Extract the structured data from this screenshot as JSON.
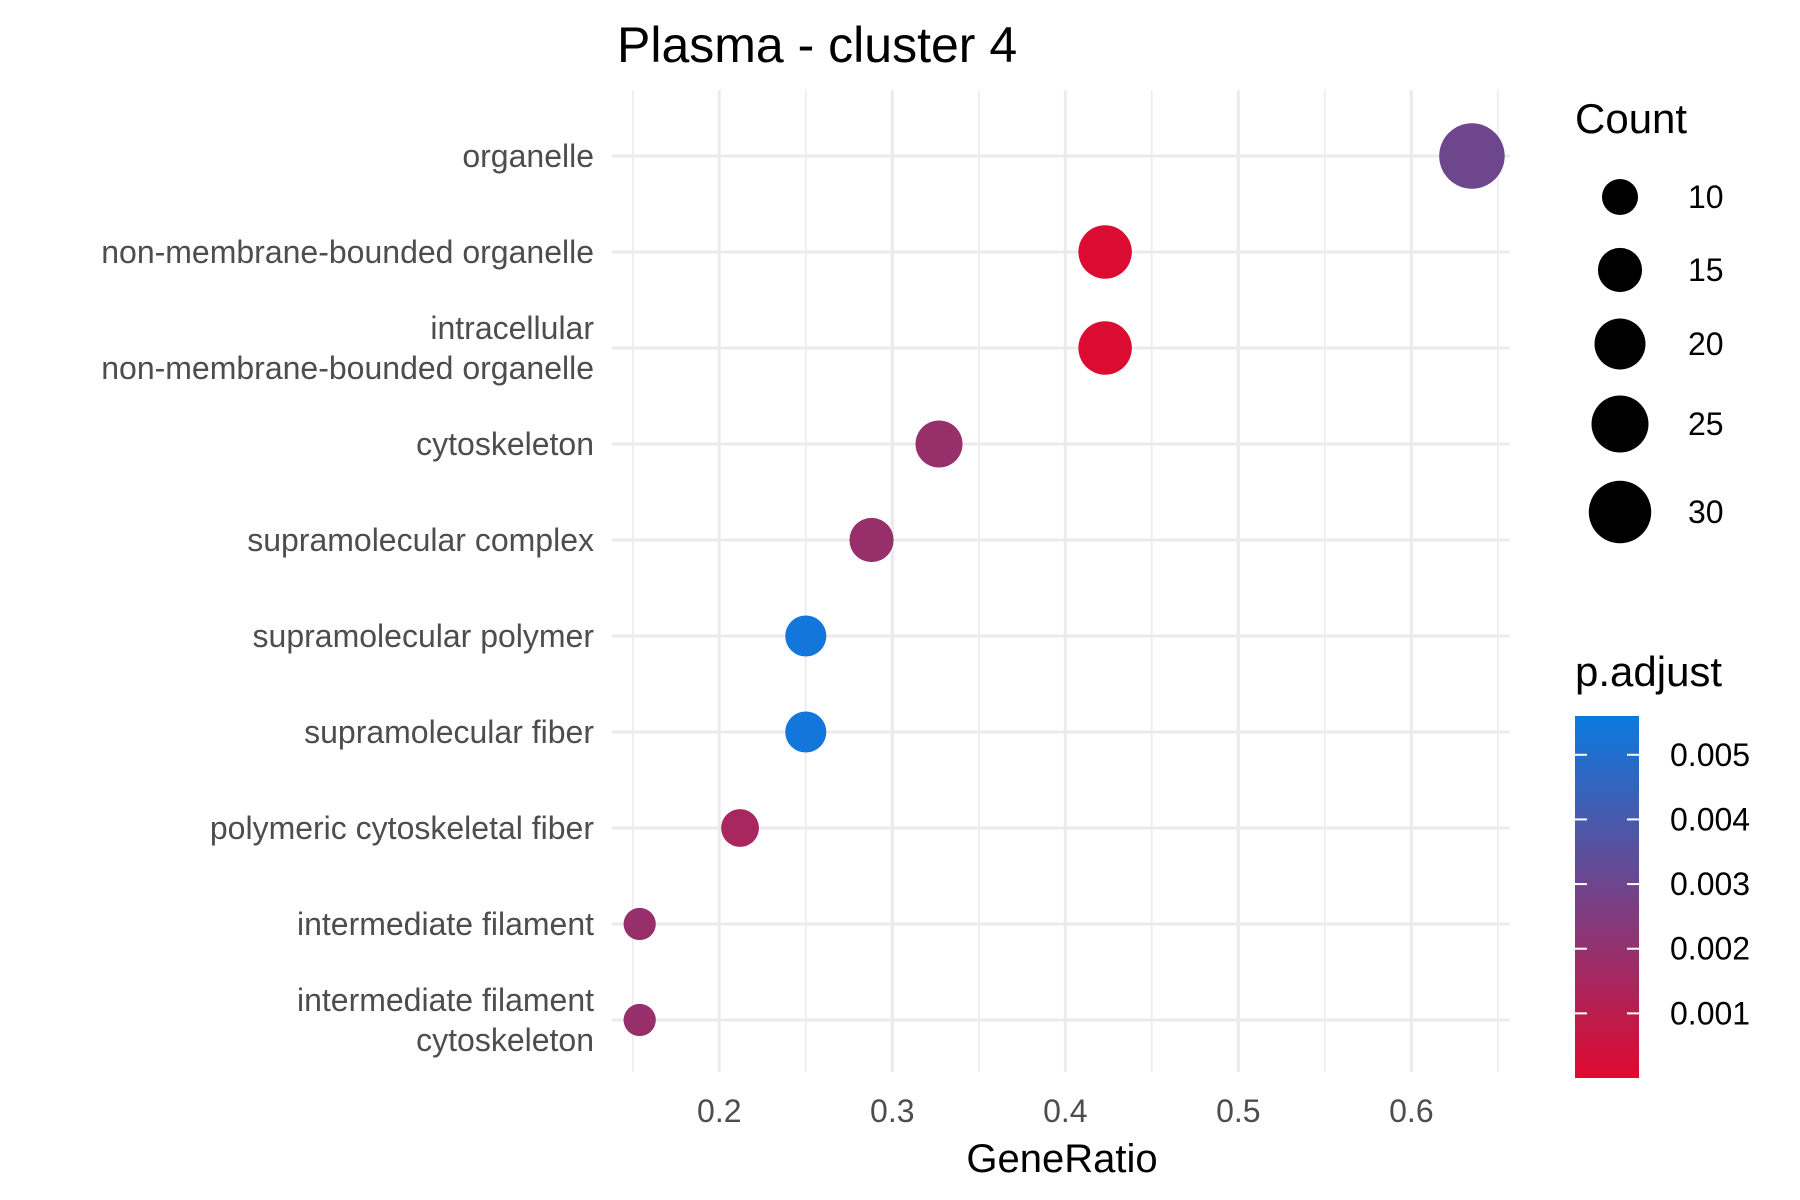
{
  "chart_data": {
    "type": "scatter",
    "title": "Plasma - cluster 4",
    "xlabel": "GeneRatio",
    "ylabel": "",
    "xlim": [
      0.138,
      0.657
    ],
    "xticks": [
      "0.2",
      "0.3",
      "0.4",
      "0.5",
      "0.6"
    ],
    "xtick_values": [
      0.2,
      0.3,
      0.4,
      0.5,
      0.6
    ],
    "grid": true,
    "categories": [
      [
        "organelle"
      ],
      [
        "non-membrane-bounded organelle"
      ],
      [
        "intracellular",
        "non-membrane-bounded organelle"
      ],
      [
        "cytoskeleton"
      ],
      [
        "supramolecular complex"
      ],
      [
        "supramolecular polymer"
      ],
      [
        "supramolecular fiber"
      ],
      [
        "polymeric cytoskeletal fiber"
      ],
      [
        "intermediate filament"
      ],
      [
        "intermediate filament",
        "cytoskeleton"
      ]
    ],
    "points": [
      {
        "gene_ratio": 0.635,
        "count": 33,
        "p_adjust": 0.003
      },
      {
        "gene_ratio": 0.423,
        "count": 22,
        "p_adjust": 0.0001
      },
      {
        "gene_ratio": 0.423,
        "count": 22,
        "p_adjust": 0.0001
      },
      {
        "gene_ratio": 0.327,
        "count": 17,
        "p_adjust": 0.0019
      },
      {
        "gene_ratio": 0.288,
        "count": 15,
        "p_adjust": 0.0019
      },
      {
        "gene_ratio": 0.25,
        "count": 13,
        "p_adjust": 0.0054
      },
      {
        "gene_ratio": 0.25,
        "count": 13,
        "p_adjust": 0.0054
      },
      {
        "gene_ratio": 0.212,
        "count": 11,
        "p_adjust": 0.0015
      },
      {
        "gene_ratio": 0.154,
        "count": 8,
        "p_adjust": 0.0019
      },
      {
        "gene_ratio": 0.154,
        "count": 8,
        "p_adjust": 0.0019
      }
    ],
    "size_legend": {
      "title": "Count",
      "labels": [
        "10",
        "15",
        "20",
        "25",
        "30"
      ],
      "values": [
        10,
        15,
        20,
        25,
        30
      ]
    },
    "color_legend": {
      "title": "p.adjust",
      "labels": [
        "0.005",
        "0.004",
        "0.003",
        "0.002",
        "0.001"
      ],
      "values": [
        0.005,
        0.004,
        0.003,
        0.002,
        0.001
      ],
      "low_color": "#E0092F",
      "high_color": "#0A7AE0",
      "range": [
        0.0,
        0.0056
      ]
    },
    "grid_color": "#EBEBEB"
  }
}
